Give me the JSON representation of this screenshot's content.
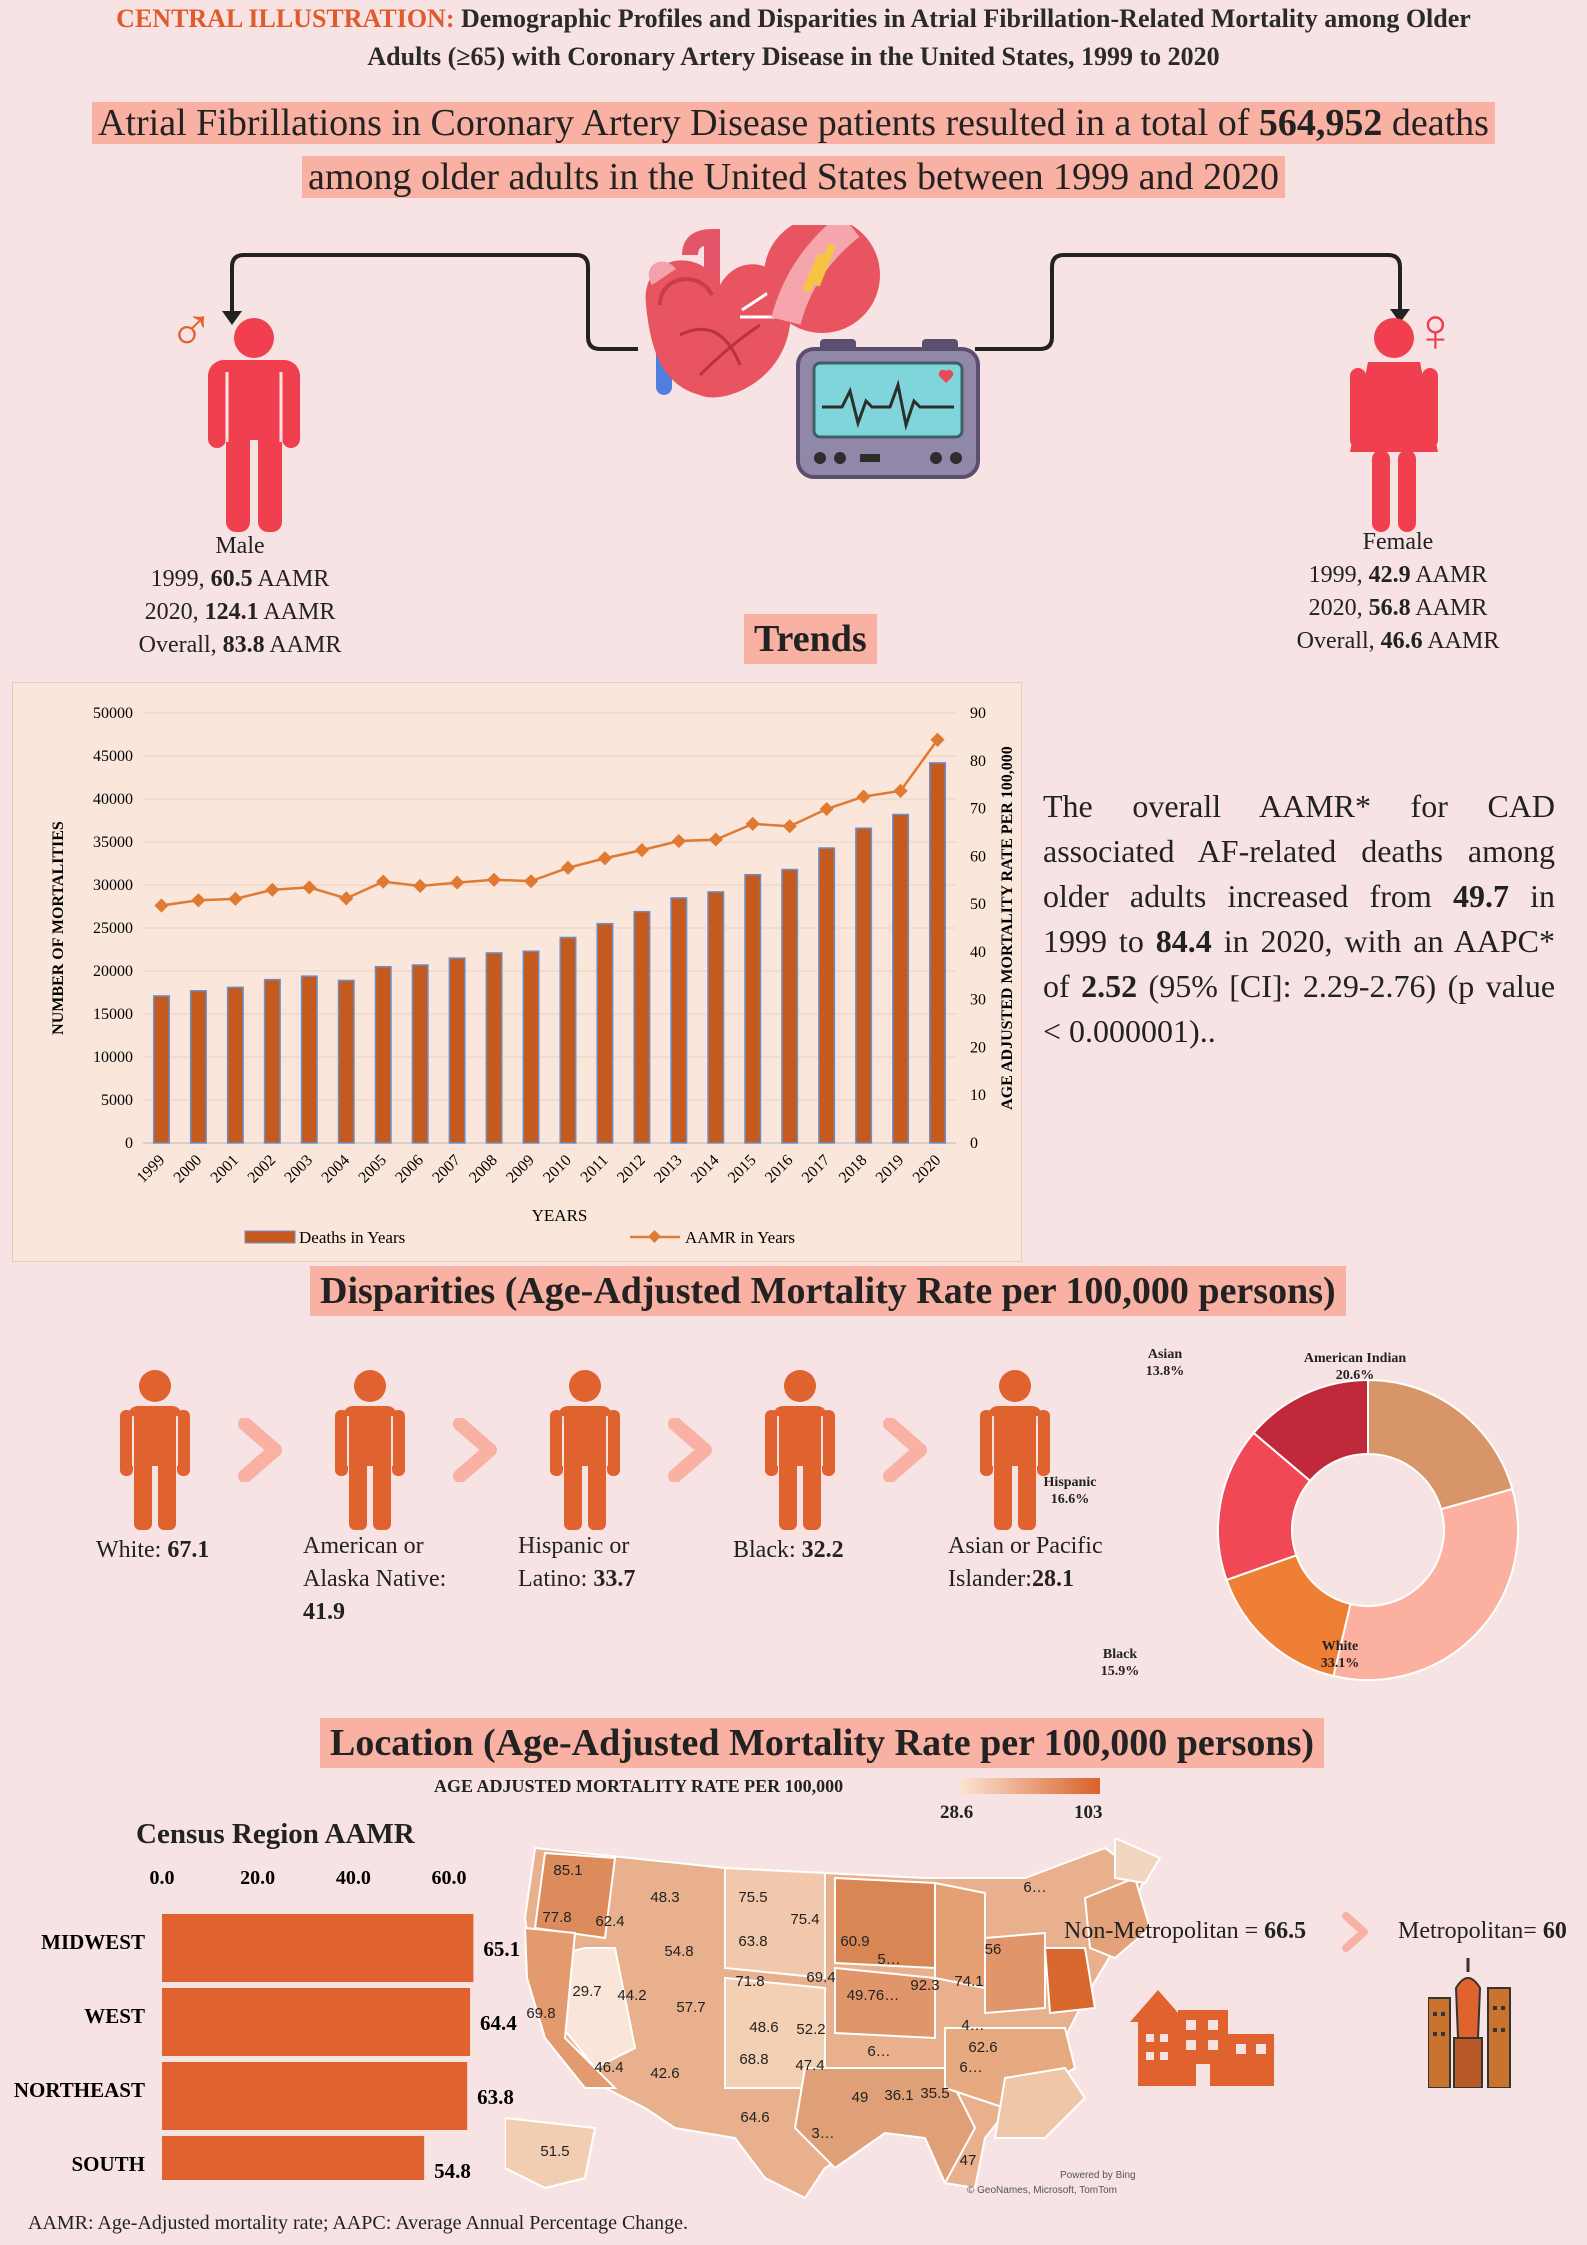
{
  "title": {
    "lead": "CENTRAL ILLUSTRATION:",
    "line1": "Demographic Profiles and Disparities in Atrial Fibrillation-Related Mortality among Older",
    "line2": "Adults (≥65) with Coronary Artery Disease in the United States, 1999 to 2020"
  },
  "headline": {
    "pre": "Atrial Fibrillations in Coronary Artery Disease patients resulted in a total of",
    "value": "564,952",
    "post": "deaths",
    "line2": "among older adults in the United States between 1999 and 2020"
  },
  "male": {
    "label": "Male",
    "y1999_pre": "1999,",
    "y1999_val": "60.5",
    "y1999_unit": "AAMR",
    "y2020_pre": "2020,",
    "y2020_val": "124.1",
    "y2020_unit": "AAMR",
    "overall_pre": "Overall,",
    "overall_val": "83.8",
    "overall_unit": "AAMR",
    "symbol": "♂"
  },
  "female": {
    "label": "Female",
    "y1999_pre": "1999,",
    "y1999_val": "42.9",
    "y1999_unit": "AAMR",
    "y2020_pre": "2020,",
    "y2020_val": "56.8",
    "y2020_unit": "AAMR",
    "overall_pre": "Overall,",
    "overall_val": "46.6",
    "overall_unit": "AAMR",
    "symbol": "♀"
  },
  "colors": {
    "accent": "#e0622f",
    "highlight": "#f8b1a3",
    "bg": "#f7e3e3",
    "figure_red": "#f04050",
    "figure_orange": "#e0622f"
  },
  "sections": {
    "trends": "Trends",
    "disparities": "Disparities (Age-Adjusted Mortality Rate per 100,000 persons)",
    "location": "Location (Age-Adjusted Mortality Rate per 100,000 persons)"
  },
  "summary": {
    "p1": "The overall AAMR* for CAD associated AF-related deaths among older adults increased from",
    "v1": "49.7",
    "p2": "in 1999 to",
    "v2": "84.4",
    "p3": "in 2020, with an AAPC* of",
    "v3": "2.52",
    "p4": "(95% [CI]: 2.29-2.76) (p value < 0.000001).."
  },
  "chart_data": [
    {
      "type": "bar+line",
      "x": [
        "1999",
        "2000",
        "2001",
        "2002",
        "2003",
        "2004",
        "2005",
        "2006",
        "2007",
        "2008",
        "2009",
        "2010",
        "2011",
        "2012",
        "2013",
        "2014",
        "2015",
        "2016",
        "2017",
        "2018",
        "2019",
        "2020"
      ],
      "series": [
        {
          "name": "Deaths in Years",
          "type": "bar",
          "axis": "left",
          "values": [
            17100,
            17700,
            18100,
            19000,
            19400,
            18900,
            20500,
            20700,
            21500,
            22100,
            22300,
            23900,
            25500,
            26900,
            28500,
            29200,
            31200,
            31800,
            34300,
            36600,
            38200,
            44200
          ]
        },
        {
          "name": "AAMR in Years",
          "type": "line",
          "axis": "right",
          "values": [
            49.7,
            50.8,
            51.1,
            53.0,
            53.5,
            51.2,
            54.7,
            53.8,
            54.5,
            55.1,
            54.8,
            57.6,
            59.6,
            61.3,
            63.2,
            63.5,
            66.8,
            66.3,
            69.9,
            72.5,
            73.7,
            84.4
          ]
        }
      ],
      "xlabel": "YEARS",
      "ylabel": "NUMBER OF MORTALITIES",
      "y2label": "AGE ADJUSTED MORTALITY RATE PER 100,000",
      "ylim": [
        0,
        50000
      ],
      "y2lim": [
        0,
        90
      ],
      "yticks": [
        "0",
        "5000",
        "10000",
        "15000",
        "20000",
        "25000",
        "30000",
        "35000",
        "40000",
        "45000",
        "50000"
      ],
      "y2ticks": [
        "0",
        "10",
        "20",
        "30",
        "40",
        "50",
        "60",
        "70",
        "80",
        "90"
      ],
      "grid": true,
      "legend": "bottom"
    },
    {
      "type": "pie",
      "style": "donut",
      "slices": [
        {
          "name": "American Indian",
          "pct_label": "20.6%",
          "value": 20.6,
          "color": "#d9956a"
        },
        {
          "name": "White",
          "pct_label": "33.1%",
          "value": 33.1,
          "color": "#fbb0a0"
        },
        {
          "name": "Black",
          "pct_label": "15.9%",
          "value": 15.9,
          "color": "#ef7f35"
        },
        {
          "name": "Hispanic",
          "pct_label": "16.6%",
          "value": 16.6,
          "color": "#f04854"
        },
        {
          "name": "Asian",
          "pct_label": "13.8%",
          "value": 13.8,
          "color": "#c0283c"
        }
      ]
    },
    {
      "type": "bar",
      "orientation": "horizontal",
      "title": "Census Region AAMR",
      "categories": [
        "MIDWEST",
        "WEST",
        "NORTHEAST",
        "SOUTH"
      ],
      "values": [
        65.1,
        64.4,
        63.8,
        54.8
      ],
      "value_labels": [
        "65.1",
        "64.4",
        "63.8",
        "54.8"
      ],
      "xticks": [
        "0.0",
        "20.0",
        "40.0",
        "60.0"
      ],
      "xlim": [
        0,
        60
      ],
      "color": "#e0622f"
    }
  ],
  "disparities": [
    {
      "lines": [
        "White:"
      ],
      "value": "67.1"
    },
    {
      "lines": [
        "American or",
        "Alaska Native:"
      ],
      "value": "41.9"
    },
    {
      "lines": [
        "Hispanic or",
        "Latino:"
      ],
      "value": "33.7"
    },
    {
      "lines": [
        "Black:"
      ],
      "value": "32.2"
    },
    {
      "lines": [
        "Asian or Pacific",
        "Islander:"
      ],
      "value": "28.1"
    }
  ],
  "map": {
    "legend_title": "AGE ADJUSTED MORTALITY RATE PER 100,000",
    "legend_min": "28.6",
    "legend_max": "103",
    "credit1": "Powered by Bing",
    "credit2": "© GeoNames, Microsoft, TomTom",
    "states": [
      {
        "label": "85.1"
      },
      {
        "label": "77.8"
      },
      {
        "label": "62.4"
      },
      {
        "label": "48.3"
      },
      {
        "label": "75.5"
      },
      {
        "label": "75.4"
      },
      {
        "label": "63.8"
      },
      {
        "label": "54.8"
      },
      {
        "label": "29.7"
      },
      {
        "label": "69.8"
      },
      {
        "label": "44.2"
      },
      {
        "label": "57.7"
      },
      {
        "label": "71.8"
      },
      {
        "label": "48.6"
      },
      {
        "label": "69.4"
      },
      {
        "label": "60.9"
      },
      {
        "label": "5…"
      },
      {
        "label": "56"
      },
      {
        "label": "74.1"
      },
      {
        "label": "92.3"
      },
      {
        "label": "49.76…"
      },
      {
        "label": "52.2"
      },
      {
        "label": "4…"
      },
      {
        "label": "62.6"
      },
      {
        "label": "46.4"
      },
      {
        "label": "42.6"
      },
      {
        "label": "68.8"
      },
      {
        "label": "47.4"
      },
      {
        "label": "6…"
      },
      {
        "label": "6…"
      },
      {
        "label": "49"
      },
      {
        "label": "36.1"
      },
      {
        "label": "35.5"
      },
      {
        "label": "64.6"
      },
      {
        "label": "3…"
      },
      {
        "label": "51.5"
      },
      {
        "label": "47"
      },
      {
        "label": "6…"
      }
    ]
  },
  "metro": {
    "nonmetro_pre": "Non-Metropolitan =",
    "nonmetro_val": "66.5",
    "metro_pre": "Metropolitan=",
    "metro_val": "60"
  },
  "footer": "AAMR: Age-Adjusted mortality rate; AAPC: Average Annual Percentage Change."
}
